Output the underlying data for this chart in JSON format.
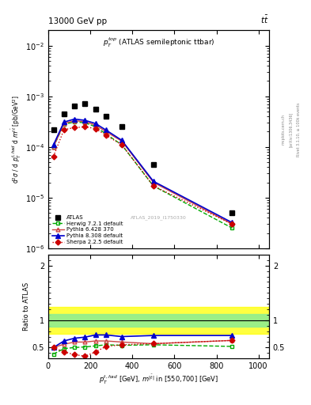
{
  "title_top": "13000 GeV pp",
  "title_right": "t$\\bar{t}$",
  "annotation": "ATLAS_2019_I1750330",
  "plot_title": "$p_T^{top}$ (ATLAS semileptonic ttbar)",
  "ylabel_main": "d$^2\\sigma$ / d $p_T^{t,had}$ d $m^{t\\bar{t}}$ [pb/GeV$^2$]",
  "ylabel_ratio": "Ratio to ATLAS",
  "xlabel": "$p_T^{t,had}$ [GeV], $m^{t|\\bar{t}|}$ in [550,700] [GeV]",
  "atlas_x": [
    25,
    75,
    125,
    175,
    225,
    275,
    350,
    500,
    875
  ],
  "atlas_y": [
    0.00022,
    0.00045,
    0.00065,
    0.00072,
    0.00055,
    0.0004,
    0.00025,
    4.5e-05,
    5e-06
  ],
  "herwig_x": [
    25,
    75,
    125,
    175,
    225,
    275,
    350,
    500,
    875
  ],
  "herwig_y": [
    0.0001,
    0.00028,
    0.00031,
    0.0003,
    0.00025,
    0.00018,
    0.00011,
    1.7e-05,
    2.5e-06
  ],
  "pythia6_x": [
    25,
    75,
    125,
    175,
    225,
    275,
    350,
    500,
    875
  ],
  "pythia6_y": [
    0.0001,
    0.00029,
    0.00033,
    0.000315,
    0.00027,
    0.0002,
    0.00013,
    2e-05,
    3e-06
  ],
  "pythia8_x": [
    25,
    75,
    125,
    175,
    225,
    275,
    350,
    500,
    875
  ],
  "pythia8_y": [
    0.00011,
    0.00031,
    0.000355,
    0.000335,
    0.00029,
    0.000215,
    0.000135,
    2.1e-05,
    3.2e-06
  ],
  "sherpa_x": [
    25,
    75,
    125,
    175,
    225,
    275,
    350,
    500,
    875
  ],
  "sherpa_y": [
    6.5e-05,
    0.00022,
    0.00024,
    0.00025,
    0.00023,
    0.00017,
    0.00011,
    1.7e-05,
    3e-06
  ],
  "herwig_ratio": [
    0.38,
    0.48,
    0.5,
    0.51,
    0.53,
    0.55,
    0.54,
    0.55,
    0.52
  ],
  "pythia6_ratio": [
    0.5,
    0.56,
    0.6,
    0.6,
    0.62,
    0.62,
    0.6,
    0.57,
    0.63
  ],
  "pythia8_ratio": [
    0.5,
    0.62,
    0.67,
    0.69,
    0.73,
    0.73,
    0.7,
    0.72,
    0.72
  ],
  "sherpa_ratio": [
    0.5,
    0.42,
    0.37,
    0.34,
    0.42,
    0.52,
    0.55,
    0.57,
    0.63
  ],
  "herwig_color": "#00aa00",
  "pythia6_color": "#cc4444",
  "pythia8_color": "#0000cc",
  "sherpa_color": "#cc0000",
  "ylim_main": [
    1e-06,
    0.02
  ],
  "ylim_ratio": [
    0.3,
    2.2
  ],
  "xlim": [
    0,
    1050
  ]
}
